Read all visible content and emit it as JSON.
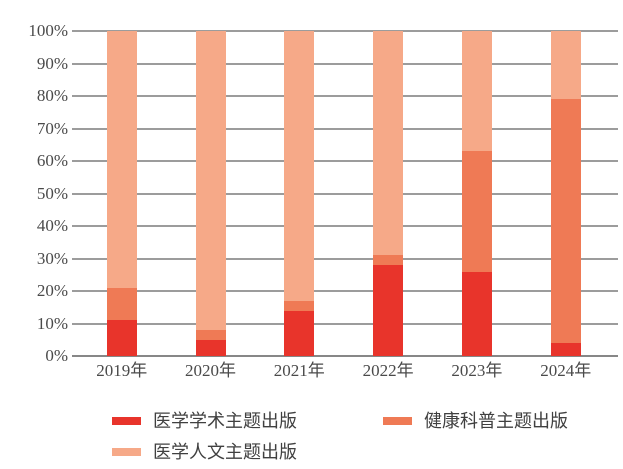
{
  "chart_data": {
    "type": "bar",
    "variant": "stacked-percent",
    "title": "",
    "categories": [
      "2019年",
      "2020年",
      "2021年",
      "2022年",
      "2023年",
      "2024年"
    ],
    "series": [
      {
        "name": "医学学术主题出版",
        "color": "#e8342b",
        "values": [
          11,
          5,
          14,
          28,
          26,
          4
        ]
      },
      {
        "name": "健康科普主题出版",
        "color": "#ef7a55",
        "values": [
          10,
          3,
          3,
          3,
          37,
          75
        ]
      },
      {
        "name": "医学人文主题出版",
        "color": "#f6a988",
        "values": [
          79,
          92,
          83,
          69,
          37,
          21
        ]
      }
    ],
    "stack_order_bottom_to_top": [
      "医学学术主题出版",
      "健康科普主题出版",
      "医学人文主题出版"
    ],
    "y_ticks": [
      "0%",
      "10%",
      "20%",
      "30%",
      "40%",
      "50%",
      "60%",
      "70%",
      "80%",
      "90%",
      "100%"
    ],
    "ylim": [
      0,
      100
    ],
    "grid": true,
    "legend_position": "bottom",
    "legend_rows": [
      [
        "医学学术主题出版",
        "健康科普主题出版"
      ],
      [
        "医学人文主题出版"
      ]
    ]
  },
  "colors": {
    "background": "#ffffff",
    "gridline": "#9c9c9c",
    "axis_line": "#878787",
    "axis_text": "#4a4a4a",
    "legend_text": "#404040"
  }
}
